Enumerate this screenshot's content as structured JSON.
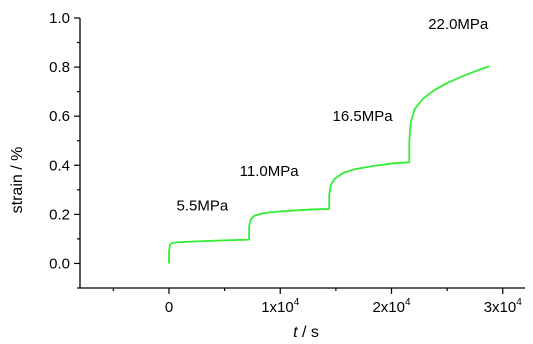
{
  "chart_data": {
    "type": "line",
    "xlabel": {
      "italic": "t",
      "rest": " / s"
    },
    "ylabel": "strain / %",
    "xlim": [
      -8000,
      32000
    ],
    "ylim": [
      -0.1,
      1.0
    ],
    "x_ticks": [
      {
        "value": 0,
        "base": "0",
        "exp": ""
      },
      {
        "value": 10000,
        "base": "1x10",
        "exp": "4"
      },
      {
        "value": 20000,
        "base": "2x10",
        "exp": "4"
      },
      {
        "value": 30000,
        "base": "3x10",
        "exp": "4"
      }
    ],
    "y_ticks": [
      {
        "value": 0.0,
        "label": "0.0"
      },
      {
        "value": 0.2,
        "label": "0.2"
      },
      {
        "value": 0.4,
        "label": "0.4"
      },
      {
        "value": 0.6,
        "label": "0.6"
      },
      {
        "value": 0.8,
        "label": "0.8"
      },
      {
        "value": 1.0,
        "label": "1.0"
      }
    ],
    "series": [
      {
        "color": "#33ee33",
        "points": [
          [
            0,
            0.0
          ],
          [
            0,
            0.05
          ],
          [
            80,
            0.075
          ],
          [
            300,
            0.084
          ],
          [
            700,
            0.086
          ],
          [
            1500,
            0.088
          ],
          [
            3000,
            0.091
          ],
          [
            5000,
            0.094
          ],
          [
            7200,
            0.097
          ],
          [
            7200,
            0.15
          ],
          [
            7350,
            0.18
          ],
          [
            7700,
            0.195
          ],
          [
            8500,
            0.205
          ],
          [
            9500,
            0.21
          ],
          [
            11000,
            0.215
          ],
          [
            12800,
            0.22
          ],
          [
            14400,
            0.222
          ],
          [
            14400,
            0.28
          ],
          [
            14550,
            0.32
          ],
          [
            14900,
            0.345
          ],
          [
            15700,
            0.37
          ],
          [
            16800,
            0.385
          ],
          [
            18500,
            0.398
          ],
          [
            20200,
            0.408
          ],
          [
            21600,
            0.412
          ],
          [
            21600,
            0.5
          ],
          [
            21750,
            0.58
          ],
          [
            22100,
            0.63
          ],
          [
            22800,
            0.67
          ],
          [
            23800,
            0.705
          ],
          [
            25000,
            0.735
          ],
          [
            26500,
            0.765
          ],
          [
            27800,
            0.788
          ],
          [
            28800,
            0.803
          ]
        ]
      }
    ],
    "annotations": [
      {
        "text": "5.5MPa",
        "x": 3000,
        "y": 0.235
      },
      {
        "text": "11.0MPa",
        "x": 9000,
        "y": 0.365
      },
      {
        "text": "16.5MPa",
        "x": 17400,
        "y": 0.595
      },
      {
        "text": "22.0MPa",
        "x": 26000,
        "y": 1.34
      }
    ],
    "grid": false
  }
}
